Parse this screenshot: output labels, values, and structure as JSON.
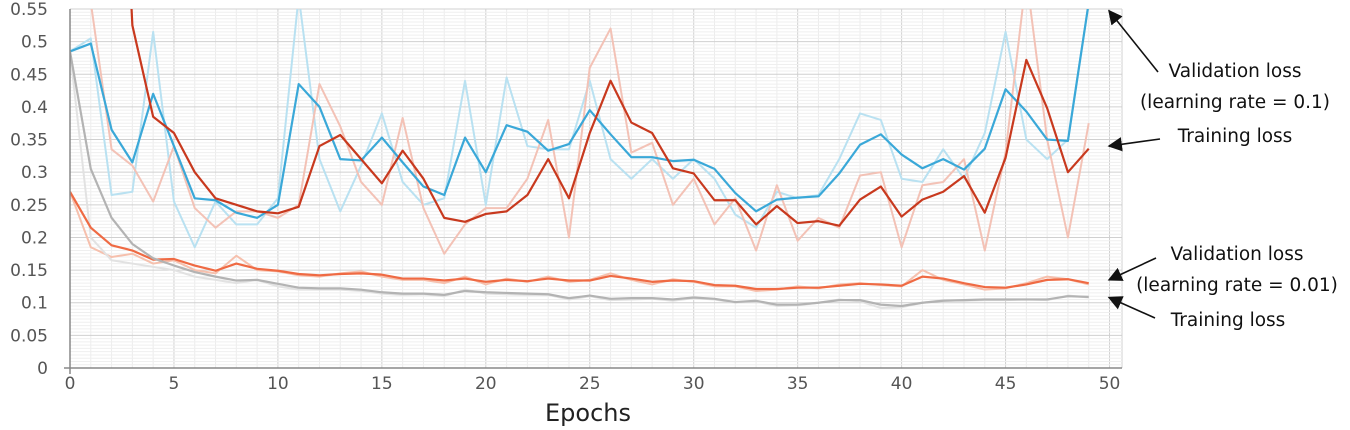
{
  "chart_data": {
    "type": "line",
    "title": "",
    "xlabel": "Epochs",
    "ylabel": "",
    "xlim": [
      0,
      50
    ],
    "ylim": [
      0,
      0.55
    ],
    "grid": true,
    "x_ticks": [
      0,
      5,
      10,
      15,
      20,
      25,
      30,
      35,
      40,
      45,
      50
    ],
    "y_ticks": [
      0,
      0.05,
      0.1,
      0.15,
      0.2,
      0.25,
      0.3,
      0.35,
      0.4,
      0.45,
      0.5,
      0.55
    ],
    "y_tick_labels": [
      "0",
      "0.05",
      "0.1",
      "0.15",
      "0.2",
      "0.25",
      "0.3",
      "0.35",
      "0.4",
      "0.45",
      "0.5",
      "0.55"
    ],
    "x_tick_labels": [
      "0",
      "5",
      "10",
      "15",
      "20",
      "25",
      "30",
      "35",
      "40",
      "45",
      "50"
    ],
    "series": [
      {
        "color": "#3aa8d8",
        "raw_color": "#b9e1f1",
        "x": [
          0,
          1,
          2,
          3,
          4,
          5,
          6,
          7,
          8,
          9,
          10,
          11,
          12,
          13,
          14,
          15,
          16,
          17,
          18,
          19,
          20,
          21,
          22,
          23,
          24,
          25,
          26,
          27,
          28,
          29,
          30,
          31,
          32,
          33,
          34,
          35,
          36,
          37,
          38,
          39,
          40,
          41,
          42,
          43,
          44,
          45,
          46,
          47,
          48,
          49
        ],
        "y": [
          0.485,
          0.497,
          0.365,
          0.315,
          0.42,
          0.34,
          0.26,
          0.257,
          0.238,
          0.23,
          0.25,
          0.435,
          0.4,
          0.32,
          0.318,
          0.353,
          0.315,
          0.278,
          0.265,
          0.353,
          0.3,
          0.372,
          0.362,
          0.333,
          0.343,
          0.395,
          0.358,
          0.323,
          0.323,
          0.317,
          0.319,
          0.305,
          0.268,
          0.24,
          0.258,
          0.261,
          0.263,
          0.298,
          0.342,
          0.358,
          0.327,
          0.306,
          0.32,
          0.304,
          0.336,
          0.427,
          0.393,
          0.35,
          0.348,
          0.56
        ],
        "raw": [
          0.485,
          0.505,
          0.265,
          0.27,
          0.515,
          0.255,
          0.185,
          0.255,
          0.22,
          0.22,
          0.26,
          0.57,
          0.32,
          0.24,
          0.31,
          0.39,
          0.285,
          0.25,
          0.26,
          0.44,
          0.25,
          0.445,
          0.34,
          0.335,
          0.335,
          0.44,
          0.32,
          0.29,
          0.32,
          0.29,
          0.32,
          0.29,
          0.235,
          0.215,
          0.27,
          0.26,
          0.265,
          0.32,
          0.39,
          0.38,
          0.29,
          0.285,
          0.335,
          0.29,
          0.36,
          0.515,
          0.35,
          0.32,
          0.35,
          0.56
        ]
      },
      {
        "color": "#c8391e",
        "raw_color": "#f3c2b6",
        "x": [
          3,
          4,
          5,
          6,
          7,
          8,
          9,
          10,
          11,
          12,
          13,
          14,
          15,
          16,
          17,
          18,
          19,
          20,
          21,
          22,
          23,
          24,
          25,
          26,
          27,
          28,
          29,
          30,
          31,
          32,
          33,
          34,
          35,
          36,
          37,
          38,
          39,
          40,
          41,
          42,
          43,
          44,
          45,
          46,
          47,
          48,
          49
        ],
        "y": [
          0.525,
          0.385,
          0.36,
          0.3,
          0.26,
          0.25,
          0.24,
          0.237,
          0.247,
          0.34,
          0.357,
          0.32,
          0.283,
          0.333,
          0.29,
          0.23,
          0.224,
          0.236,
          0.24,
          0.265,
          0.32,
          0.26,
          0.36,
          0.44,
          0.376,
          0.36,
          0.306,
          0.298,
          0.257,
          0.257,
          0.22,
          0.248,
          0.222,
          0.225,
          0.218,
          0.258,
          0.278,
          0.232,
          0.258,
          0.27,
          0.294,
          0.238,
          0.322,
          0.472,
          0.398,
          0.3,
          0.336
        ],
        "raw": [
          0.31,
          0.255,
          0.34,
          0.245,
          0.215,
          0.24,
          0.24,
          0.23,
          0.25,
          0.435,
          0.37,
          0.285,
          0.25,
          0.383,
          0.245,
          0.175,
          0.22,
          0.245,
          0.245,
          0.29,
          0.38,
          0.2,
          0.46,
          0.52,
          0.33,
          0.345,
          0.25,
          0.29,
          0.22,
          0.26,
          0.18,
          0.28,
          0.195,
          0.23,
          0.215,
          0.295,
          0.3,
          0.185,
          0.28,
          0.285,
          0.32,
          0.18,
          0.33,
          0.6,
          0.35,
          0.2,
          0.375
        ],
        "extra_raw_x": [
          1,
          2
        ],
        "extra_raw_y": [
          0.56,
          0.335
        ]
      },
      {
        "color": "#ef6a43",
        "raw_color": "#f6c0ad",
        "x": [
          0,
          1,
          2,
          3,
          4,
          5,
          6,
          7,
          8,
          9,
          10,
          11,
          12,
          13,
          14,
          15,
          16,
          17,
          18,
          19,
          20,
          21,
          22,
          23,
          24,
          25,
          26,
          27,
          28,
          29,
          30,
          31,
          32,
          33,
          34,
          35,
          36,
          37,
          38,
          39,
          40,
          41,
          42,
          43,
          44,
          45,
          46,
          47,
          48,
          49
        ],
        "y": [
          0.27,
          0.215,
          0.188,
          0.18,
          0.166,
          0.167,
          0.157,
          0.149,
          0.16,
          0.152,
          0.149,
          0.144,
          0.142,
          0.144,
          0.145,
          0.143,
          0.137,
          0.137,
          0.134,
          0.137,
          0.132,
          0.135,
          0.133,
          0.137,
          0.134,
          0.134,
          0.141,
          0.137,
          0.132,
          0.134,
          0.133,
          0.127,
          0.126,
          0.121,
          0.121,
          0.123,
          0.123,
          0.126,
          0.129,
          0.128,
          0.126,
          0.14,
          0.137,
          0.13,
          0.124,
          0.123,
          0.128,
          0.135,
          0.136,
          0.13
        ],
        "raw": [
          0.27,
          0.185,
          0.17,
          0.175,
          0.16,
          0.165,
          0.15,
          0.145,
          0.172,
          0.15,
          0.148,
          0.142,
          0.14,
          0.145,
          0.148,
          0.14,
          0.135,
          0.135,
          0.13,
          0.14,
          0.128,
          0.137,
          0.132,
          0.14,
          0.132,
          0.135,
          0.145,
          0.135,
          0.128,
          0.136,
          0.132,
          0.125,
          0.125,
          0.118,
          0.12,
          0.125,
          0.122,
          0.128,
          0.13,
          0.127,
          0.125,
          0.15,
          0.135,
          0.128,
          0.12,
          0.122,
          0.13,
          0.14,
          0.136,
          0.128
        ]
      },
      {
        "color": "#b3b3b3",
        "raw_color": "#e2e2e2",
        "x": [
          0,
          1,
          2,
          3,
          4,
          5,
          6,
          7,
          8,
          9,
          10,
          11,
          12,
          13,
          14,
          15,
          16,
          17,
          18,
          19,
          20,
          21,
          22,
          23,
          24,
          25,
          26,
          27,
          28,
          29,
          30,
          31,
          32,
          33,
          34,
          35,
          36,
          37,
          38,
          39,
          40,
          41,
          42,
          43,
          44,
          45,
          46,
          47,
          48,
          49
        ],
        "y": [
          0.485,
          0.305,
          0.23,
          0.19,
          0.168,
          0.157,
          0.147,
          0.14,
          0.134,
          0.135,
          0.129,
          0.123,
          0.122,
          0.122,
          0.12,
          0.116,
          0.114,
          0.114,
          0.112,
          0.118,
          0.116,
          0.115,
          0.114,
          0.113,
          0.107,
          0.111,
          0.106,
          0.107,
          0.107,
          0.105,
          0.108,
          0.106,
          0.101,
          0.103,
          0.097,
          0.097,
          0.1,
          0.104,
          0.104,
          0.097,
          0.095,
          0.1,
          0.103,
          0.104,
          0.105,
          0.105,
          0.105,
          0.105,
          0.11,
          0.109
        ],
        "raw": [
          0.485,
          0.2,
          0.165,
          0.16,
          0.155,
          0.15,
          0.14,
          0.135,
          0.13,
          0.135,
          0.125,
          0.12,
          0.12,
          0.12,
          0.118,
          0.114,
          0.112,
          0.113,
          0.11,
          0.12,
          0.114,
          0.113,
          0.112,
          0.112,
          0.105,
          0.11,
          0.104,
          0.105,
          0.106,
          0.103,
          0.107,
          0.105,
          0.1,
          0.102,
          0.095,
          0.096,
          0.1,
          0.105,
          0.102,
          0.092,
          0.093,
          0.1,
          0.104,
          0.103,
          0.104,
          0.104,
          0.105,
          0.104,
          0.111,
          0.108
        ]
      }
    ],
    "annotations": [
      {
        "lines": [
          "Validation loss",
          "(learning rate = 0.1)"
        ],
        "target": [
          49.3,
          0.535
        ]
      },
      {
        "lines": [
          "Training loss"
        ],
        "target": [
          49.3,
          0.34
        ]
      },
      {
        "lines": [
          "Validation loss",
          "(learning rate = 0.01)"
        ],
        "target": [
          49.3,
          0.135
        ]
      },
      {
        "lines": [
          "Training loss"
        ],
        "target": [
          49.3,
          0.108
        ]
      }
    ]
  }
}
